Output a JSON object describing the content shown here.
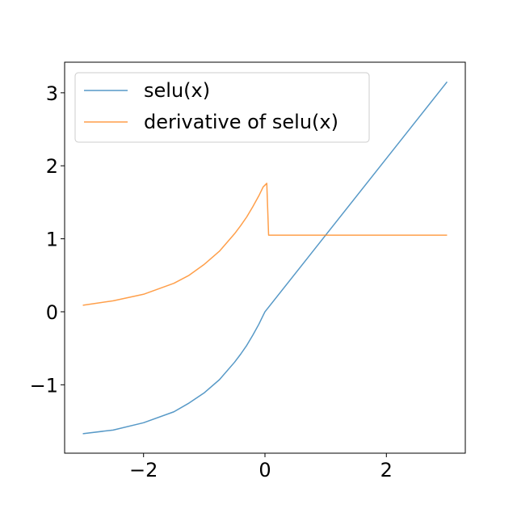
{
  "chart_data": {
    "type": "line",
    "title": "",
    "xlabel": "",
    "ylabel": "",
    "xlim": [
      -3.3,
      3.3
    ],
    "ylim": [
      -1.937,
      3.419
    ],
    "grid": false,
    "legend_position": "top-left",
    "xticks": [
      {
        "value": -2,
        "label": "−2"
      },
      {
        "value": 0,
        "label": "0"
      },
      {
        "value": 2,
        "label": "2"
      }
    ],
    "yticks": [
      {
        "value": -1,
        "label": "−1"
      },
      {
        "value": 0,
        "label": "0"
      },
      {
        "value": 1,
        "label": "1"
      },
      {
        "value": 2,
        "label": "2"
      },
      {
        "value": 3,
        "label": "3"
      }
    ],
    "series": [
      {
        "name": "selu(x)",
        "color": "#1f77b4",
        "x": [
          -3.0,
          -2.5,
          -2.0,
          -1.5,
          -1.25,
          -1.0,
          -0.75,
          -0.5,
          -0.4,
          -0.3,
          -0.2,
          -0.1,
          -0.03,
          0.0,
          1.0,
          2.0,
          3.0
        ],
        "y": [
          -1.67,
          -1.62,
          -1.52,
          -1.37,
          -1.25,
          -1.11,
          -0.93,
          -0.69,
          -0.58,
          -0.46,
          -0.32,
          -0.17,
          -0.05,
          0.0,
          1.05,
          2.1,
          3.15
        ]
      },
      {
        "name": "derivative of selu(x)",
        "color": "#ff7f0e",
        "x": [
          -3.0,
          -2.5,
          -2.0,
          -1.5,
          -1.25,
          -1.0,
          -0.75,
          -0.5,
          -0.4,
          -0.3,
          -0.2,
          -0.1,
          -0.03,
          0.03,
          0.06,
          3.0
        ],
        "y": [
          0.09,
          0.15,
          0.24,
          0.39,
          0.5,
          0.65,
          0.83,
          1.07,
          1.18,
          1.3,
          1.44,
          1.59,
          1.71,
          1.76,
          1.05,
          1.05
        ]
      }
    ]
  }
}
